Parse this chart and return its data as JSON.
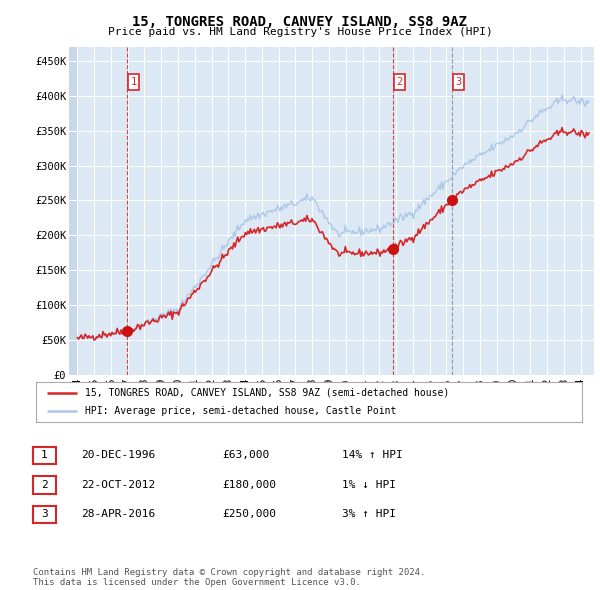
{
  "title": "15, TONGRES ROAD, CANVEY ISLAND, SS8 9AZ",
  "subtitle": "Price paid vs. HM Land Registry's House Price Index (HPI)",
  "ylabel_ticks": [
    "£0",
    "£50K",
    "£100K",
    "£150K",
    "£200K",
    "£250K",
    "£300K",
    "£350K",
    "£400K",
    "£450K"
  ],
  "ytick_values": [
    0,
    50000,
    100000,
    150000,
    200000,
    250000,
    300000,
    350000,
    400000,
    450000
  ],
  "ylim": [
    0,
    470000
  ],
  "xlim_start": 1993.5,
  "xlim_end": 2024.8,
  "xtick_values": [
    1994,
    1995,
    1996,
    1997,
    1998,
    1999,
    2000,
    2001,
    2002,
    2003,
    2004,
    2005,
    2006,
    2007,
    2008,
    2009,
    2010,
    2011,
    2012,
    2013,
    2014,
    2015,
    2016,
    2017,
    2018,
    2019,
    2020,
    2021,
    2022,
    2023,
    2024
  ],
  "xtick_labels": [
    "94",
    "95",
    "96",
    "97",
    "98",
    "99",
    "00",
    "01",
    "02",
    "03",
    "04",
    "05",
    "06",
    "07",
    "08",
    "09",
    "10",
    "11",
    "12",
    "13",
    "14",
    "15",
    "16",
    "17",
    "18",
    "19",
    "20",
    "21",
    "22",
    "23",
    "24"
  ],
  "sale_dates": [
    1996.97,
    2012.81,
    2016.33
  ],
  "sale_prices": [
    63000,
    180000,
    250000
  ],
  "sale_labels": [
    "1",
    "2",
    "3"
  ],
  "sale_vline_colors": [
    "#d62728",
    "#d62728",
    "#888888"
  ],
  "hpi_color": "#aec7e8",
  "price_paid_color": "#d62728",
  "legend_label_price": "15, TONGRES ROAD, CANVEY ISLAND, SS8 9AZ (semi-detached house)",
  "legend_label_hpi": "HPI: Average price, semi-detached house, Castle Point",
  "table_data": [
    [
      "1",
      "20-DEC-1996",
      "£63,000",
      "14% ↑ HPI"
    ],
    [
      "2",
      "22-OCT-2012",
      "£180,000",
      "1% ↓ HPI"
    ],
    [
      "3",
      "28-APR-2016",
      "£250,000",
      "3% ↑ HPI"
    ]
  ],
  "footer": "Contains HM Land Registry data © Crown copyright and database right 2024.\nThis data is licensed under the Open Government Licence v3.0.",
  "background_color": "#ffffff",
  "plot_bg_color": "#dce9f5"
}
